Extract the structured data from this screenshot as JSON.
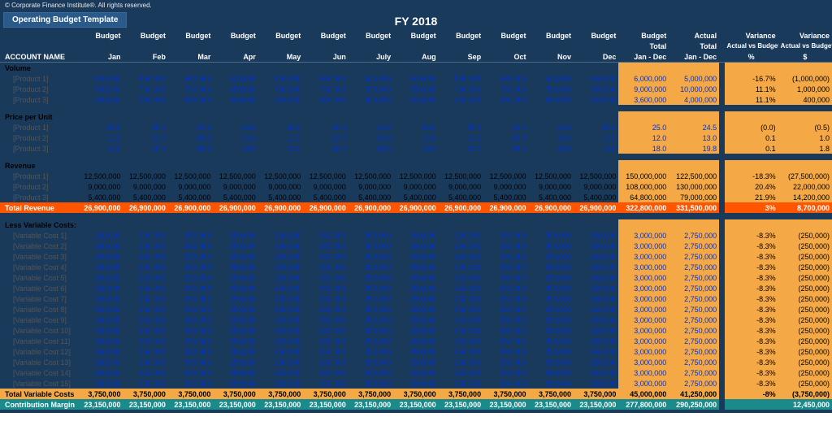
{
  "copyright": "© Corporate Finance Institute®. All rights reserved.",
  "title": "Operating Budget Template",
  "fy": "FY 2018",
  "headers": {
    "account": "ACCOUNT NAME",
    "budget": "Budget",
    "months": [
      "Jan",
      "Feb",
      "Mar",
      "Apr",
      "May",
      "Jun",
      "July",
      "Aug",
      "Sep",
      "Oct",
      "Nov",
      "Dec"
    ],
    "budget_total_1": "Budget",
    "budget_total_2": "Total",
    "budget_total_3": "Jan - Dec",
    "actual_total_1": "Actual",
    "actual_total_2": "Total",
    "actual_total_3": "Jan - Dec",
    "var_1": "Variance",
    "var_ab": "Actual vs Budget",
    "var_pct": "%",
    "var_dol": "$"
  },
  "sections": [
    {
      "name": "Volume",
      "style": "blue",
      "rows": [
        {
          "label": "[Product 1]",
          "m": "500,000",
          "bt": "6,000,000",
          "at": "5,000,000",
          "vp": "-16.7%",
          "vd": "(1,000,000)"
        },
        {
          "label": "[Product 2]",
          "m": "750,000",
          "bt": "9,000,000",
          "at": "10,000,000",
          "vp": "11.1%",
          "vd": "1,000,000"
        },
        {
          "label": "[Product 3]",
          "m": "300,000",
          "bt": "3,600,000",
          "at": "4,000,000",
          "vp": "11.1%",
          "vd": "400,000"
        }
      ]
    },
    {
      "name": "Price per Unit",
      "style": "blue",
      "rows": [
        {
          "label": "[Product 1]",
          "m": "25.0",
          "bt": "25.0",
          "at": "24.5",
          "vp": "(0.0)",
          "vd": "(0.5)"
        },
        {
          "label": "[Product 2]",
          "m": "12.0",
          "bt": "12.0",
          "at": "13.0",
          "vp": "0.1",
          "vd": "1.0"
        },
        {
          "label": "[Product 3]",
          "m": "18.0",
          "bt": "18.0",
          "at": "19.8",
          "vp": "0.1",
          "vd": "1.8"
        }
      ]
    },
    {
      "name": "Revenue",
      "style": "black",
      "rows": [
        {
          "label": "[Product 1]",
          "m": "12,500,000",
          "bt": "150,000,000",
          "at": "122,500,000",
          "vp": "-18.3%",
          "vd": "(27,500,000)"
        },
        {
          "label": "[Product 2]",
          "m": "9,000,000",
          "bt": "108,000,000",
          "at": "130,000,000",
          "vp": "20.4%",
          "vd": "22,000,000"
        },
        {
          "label": "[Product 3]",
          "m": "5,400,000",
          "bt": "64,800,000",
          "at": "79,000,000",
          "vp": "21.9%",
          "vd": "14,200,000"
        }
      ],
      "total": {
        "label": "Total Revenue",
        "class": "or-row",
        "m": "26,900,000",
        "bt": "322,800,000",
        "at": "331,500,000",
        "vp": "3%",
        "vd": "8,700,000"
      }
    },
    {
      "name": "Less Variable Costs:",
      "style": "blue",
      "rows": [
        {
          "label": "[Variable Cost 1]",
          "m": "250,000",
          "bt": "3,000,000",
          "at": "2,750,000",
          "vp": "-8.3%",
          "vd": "(250,000)"
        },
        {
          "label": "[Variable Cost 2]",
          "m": "250,000",
          "bt": "3,000,000",
          "at": "2,750,000",
          "vp": "-8.3%",
          "vd": "(250,000)"
        },
        {
          "label": "[Variable Cost 3]",
          "m": "250,000",
          "bt": "3,000,000",
          "at": "2,750,000",
          "vp": "-8.3%",
          "vd": "(250,000)"
        },
        {
          "label": "[Variable Cost 4]",
          "m": "250,000",
          "bt": "3,000,000",
          "at": "2,750,000",
          "vp": "-8.3%",
          "vd": "(250,000)"
        },
        {
          "label": "[Variable Cost 5]",
          "m": "250,000",
          "bt": "3,000,000",
          "at": "2,750,000",
          "vp": "-8.3%",
          "vd": "(250,000)"
        },
        {
          "label": "[Variable Cost 6]",
          "m": "250,000",
          "bt": "3,000,000",
          "at": "2,750,000",
          "vp": "-8.3%",
          "vd": "(250,000)"
        },
        {
          "label": "[Variable Cost 7]",
          "m": "250,000",
          "bt": "3,000,000",
          "at": "2,750,000",
          "vp": "-8.3%",
          "vd": "(250,000)"
        },
        {
          "label": "[Variable Cost 8]",
          "m": "250,000",
          "bt": "3,000,000",
          "at": "2,750,000",
          "vp": "-8.3%",
          "vd": "(250,000)"
        },
        {
          "label": "[Variable Cost 9]",
          "m": "250,000",
          "bt": "3,000,000",
          "at": "2,750,000",
          "vp": "-8.3%",
          "vd": "(250,000)"
        },
        {
          "label": "[Variable Cost 10]",
          "m": "250,000",
          "bt": "3,000,000",
          "at": "2,750,000",
          "vp": "-8.3%",
          "vd": "(250,000)"
        },
        {
          "label": "[Variable Cost 11]",
          "m": "250,000",
          "bt": "3,000,000",
          "at": "2,750,000",
          "vp": "-8.3%",
          "vd": "(250,000)"
        },
        {
          "label": "[Variable Cost 12]",
          "m": "250,000",
          "bt": "3,000,000",
          "at": "2,750,000",
          "vp": "-8.3%",
          "vd": "(250,000)"
        },
        {
          "label": "[Variable Cost 13]",
          "m": "250,000",
          "bt": "3,000,000",
          "at": "2,750,000",
          "vp": "-8.3%",
          "vd": "(250,000)"
        },
        {
          "label": "[Variable Cost 14]",
          "m": "250,000",
          "bt": "3,000,000",
          "at": "2,750,000",
          "vp": "-8.3%",
          "vd": "(250,000)"
        },
        {
          "label": "[Variable Cost 15]",
          "m": "250,000",
          "bt": "3,000,000",
          "at": "2,750,000",
          "vp": "-8.3%",
          "vd": "(250,000)"
        }
      ],
      "total": {
        "label": "Total Variable Costs",
        "class": "or-row2",
        "m": "3,750,000",
        "bt": "45,000,000",
        "at": "41,250,000",
        "vp": "-8%",
        "vd": "(3,750,000)"
      }
    }
  ],
  "contribution": {
    "label": "Contribution Margin",
    "class": "teal-row",
    "m": "23,150,000",
    "bt": "277,800,000",
    "at": "290,250,000",
    "vp": "",
    "vd": "12,450,000"
  },
  "colors": {
    "header_bg": "#1a3a5c",
    "title_bg": "#2a5a8a",
    "blue_text": "#0033cc",
    "orange_bg": "#f4a946",
    "orange_row": "#ff5500",
    "teal_row": "#1a8a8a"
  }
}
